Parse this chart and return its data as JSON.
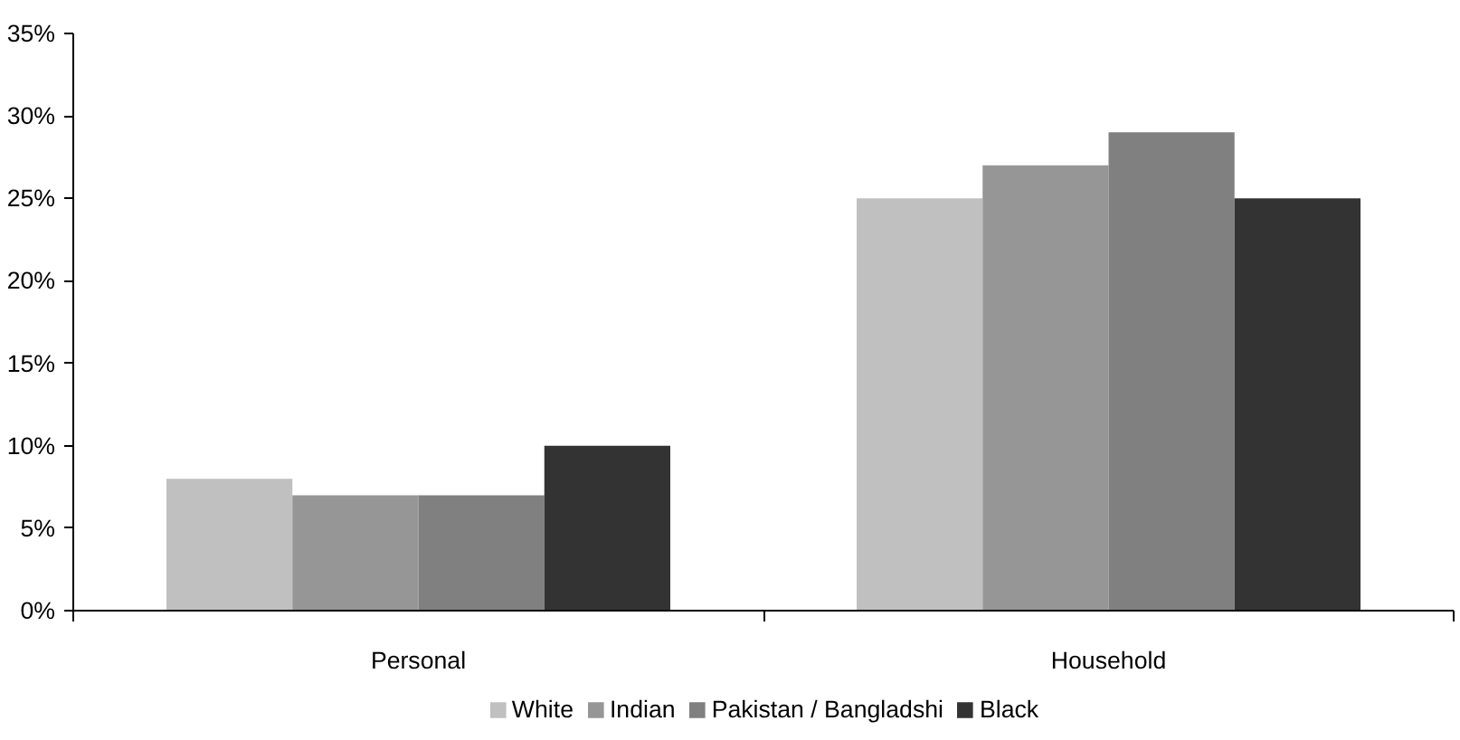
{
  "chart_data": {
    "type": "bar",
    "categories": [
      "Personal",
      "Household"
    ],
    "series": [
      {
        "name": "White",
        "color": "#c0c0c0",
        "values": [
          8,
          25
        ]
      },
      {
        "name": "Indian",
        "color": "#969696",
        "values": [
          7,
          27
        ]
      },
      {
        "name": "Pakistan / Bangladshi",
        "color": "#808080",
        "values": [
          7,
          29
        ]
      },
      {
        "name": "Black",
        "color": "#333333",
        "values": [
          10,
          25
        ]
      }
    ],
    "ylim": [
      0,
      35
    ],
    "yticks": [
      {
        "value": 0,
        "label": "0%"
      },
      {
        "value": 5,
        "label": "5%"
      },
      {
        "value": 10,
        "label": "10%"
      },
      {
        "value": 15,
        "label": "15%"
      },
      {
        "value": 20,
        "label": "20%"
      },
      {
        "value": 25,
        "label": "25%"
      },
      {
        "value": 30,
        "label": "30%"
      },
      {
        "value": 35,
        "label": "35%"
      }
    ],
    "grid": false,
    "legend": "bottom"
  }
}
